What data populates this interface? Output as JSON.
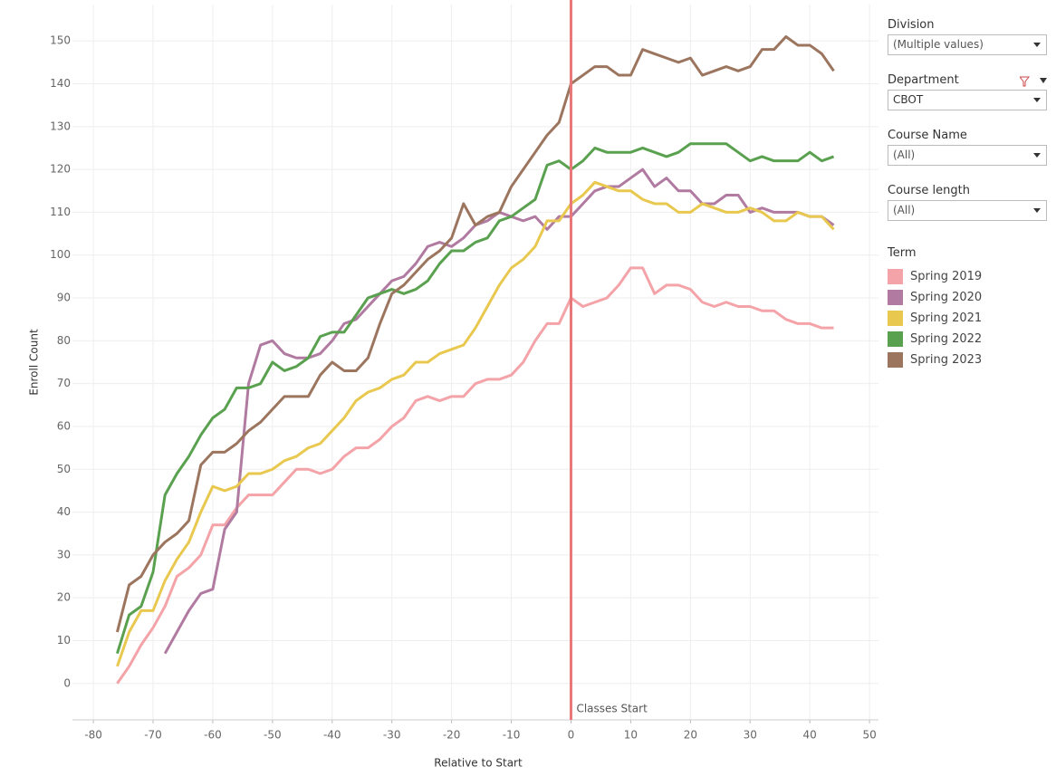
{
  "chart_data": {
    "type": "line",
    "x_label": "Relative to Start",
    "y_label": "Enroll Count",
    "x": [
      -76,
      -74,
      -72,
      -70,
      -68,
      -66,
      -64,
      -62,
      -60,
      -58,
      -56,
      -54,
      -52,
      -50,
      -48,
      -46,
      -44,
      -42,
      -40,
      -38,
      -36,
      -34,
      -32,
      -30,
      -28,
      -26,
      -24,
      -22,
      -20,
      -18,
      -16,
      -14,
      -12,
      -10,
      -8,
      -6,
      -4,
      -2,
      0,
      2,
      4,
      6,
      8,
      10,
      12,
      14,
      16,
      18,
      20,
      22,
      24,
      26,
      28,
      30,
      32,
      34,
      36,
      38,
      40,
      42,
      44
    ],
    "series": [
      {
        "name": "Spring 2019",
        "color": "#f4a3a8",
        "values": [
          0,
          4,
          9,
          13,
          18,
          25,
          27,
          30,
          37,
          37,
          41,
          44,
          44,
          44,
          47,
          50,
          50,
          49,
          50,
          53,
          55,
          55,
          57,
          60,
          62,
          66,
          67,
          66,
          67,
          67,
          70,
          71,
          71,
          72,
          75,
          80,
          84,
          84,
          90,
          88,
          89,
          90,
          93,
          97,
          97,
          91,
          93,
          93,
          92,
          89,
          88,
          89,
          88,
          88,
          87,
          87,
          85,
          84,
          84,
          83,
          83
        ]
      },
      {
        "name": "Spring 2020",
        "color": "#b07aa1",
        "values": [
          null,
          null,
          null,
          null,
          7,
          12,
          17,
          21,
          22,
          36,
          40,
          70,
          79,
          80,
          77,
          76,
          76,
          77,
          80,
          84,
          85,
          88,
          91,
          94,
          95,
          98,
          102,
          103,
          102,
          104,
          107,
          108,
          110,
          109,
          108,
          109,
          106,
          109,
          109,
          112,
          115,
          116,
          116,
          118,
          120,
          116,
          118,
          115,
          115,
          112,
          112,
          114,
          114,
          110,
          111,
          110,
          110,
          110,
          109,
          109,
          107
        ]
      },
      {
        "name": "Spring 2021",
        "color": "#e9c84f",
        "values": [
          4,
          12,
          17,
          17,
          24,
          29,
          33,
          40,
          46,
          45,
          46,
          49,
          49,
          50,
          52,
          53,
          55,
          56,
          59,
          62,
          66,
          68,
          69,
          71,
          72,
          75,
          75,
          77,
          78,
          79,
          83,
          88,
          93,
          97,
          99,
          102,
          108,
          108,
          112,
          114,
          117,
          116,
          115,
          115,
          113,
          112,
          112,
          110,
          110,
          112,
          111,
          110,
          110,
          111,
          110,
          108,
          108,
          110,
          109,
          109,
          106
        ]
      },
      {
        "name": "Spring 2022",
        "color": "#59a14f",
        "values": [
          7,
          16,
          18,
          26,
          44,
          49,
          53,
          58,
          62,
          64,
          69,
          69,
          70,
          75,
          73,
          74,
          76,
          81,
          82,
          82,
          86,
          90,
          91,
          92,
          91,
          92,
          94,
          98,
          101,
          101,
          103,
          104,
          108,
          109,
          111,
          113,
          121,
          122,
          120,
          122,
          125,
          124,
          124,
          124,
          125,
          124,
          123,
          124,
          126,
          126,
          126,
          126,
          124,
          122,
          123,
          122,
          122,
          122,
          124,
          122,
          123
        ]
      },
      {
        "name": "Spring 2023",
        "color": "#9c755f",
        "values": [
          12,
          23,
          25,
          30,
          33,
          35,
          38,
          51,
          54,
          54,
          56,
          59,
          61,
          64,
          67,
          67,
          67,
          72,
          75,
          73,
          73,
          76,
          84,
          91,
          93,
          96,
          99,
          101,
          104,
          112,
          107,
          109,
          110,
          116,
          120,
          124,
          128,
          131,
          140,
          142,
          144,
          144,
          142,
          142,
          148,
          147,
          146,
          145,
          146,
          142,
          143,
          144,
          143,
          144,
          148,
          148,
          151,
          149,
          149,
          147,
          143
        ]
      }
    ],
    "xlim": [
      -83.5,
      51.5
    ],
    "xticks": [
      -80,
      -70,
      -60,
      -50,
      -40,
      -30,
      -20,
      -10,
      0,
      10,
      20,
      30,
      40,
      50
    ],
    "ylim": [
      -8.5,
      158.5
    ],
    "yticks": [
      0,
      10,
      20,
      30,
      40,
      50,
      60,
      70,
      80,
      90,
      100,
      110,
      120,
      130,
      140,
      150
    ],
    "grid": true,
    "reference_line": {
      "x": 0,
      "label": "Classes Start",
      "color": "#e8777a"
    },
    "legend_title": "Term"
  },
  "filters": [
    {
      "label": "Division",
      "value": "(Multiple values)"
    },
    {
      "label": "Department",
      "value": "CBOT"
    },
    {
      "label": "Course Name",
      "value": "(All)"
    },
    {
      "label": "Course length",
      "value": "(All)"
    }
  ]
}
